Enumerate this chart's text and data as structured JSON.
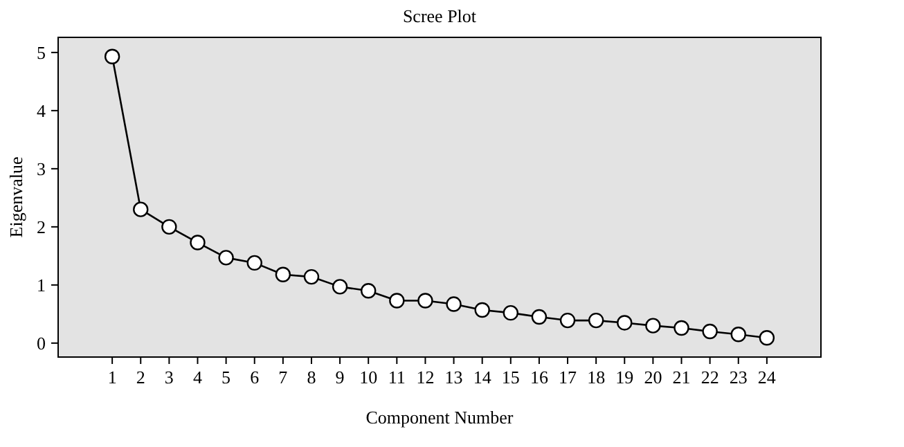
{
  "chart_data": {
    "type": "line",
    "title": "Scree Plot",
    "xlabel": "Component Number",
    "ylabel": "Eigenvalue",
    "x": [
      1,
      2,
      3,
      4,
      5,
      6,
      7,
      8,
      9,
      10,
      11,
      12,
      13,
      14,
      15,
      16,
      17,
      18,
      19,
      20,
      21,
      22,
      23,
      24
    ],
    "series": [
      {
        "color": "#000000",
        "values": [
          4.93,
          2.3,
          2.0,
          1.73,
          1.47,
          1.38,
          1.18,
          1.14,
          0.97,
          0.9,
          0.73,
          0.73,
          0.67,
          0.57,
          0.52,
          0.45,
          0.39,
          0.39,
          0.35,
          0.3,
          0.26,
          0.2,
          0.15,
          0.09
        ]
      }
    ],
    "xlim": [
      -0.9,
      25.9
    ],
    "xticks": [
      1,
      2,
      3,
      4,
      5,
      6,
      7,
      8,
      9,
      10,
      11,
      12,
      13,
      14,
      15,
      16,
      17,
      18,
      19,
      20,
      21,
      22,
      23,
      24
    ],
    "ylim": [
      -0.24,
      5.26
    ],
    "yticks": [
      0,
      1,
      2,
      3,
      4,
      5
    ],
    "marker": "circle",
    "line_style": "solid",
    "grid": false
  }
}
